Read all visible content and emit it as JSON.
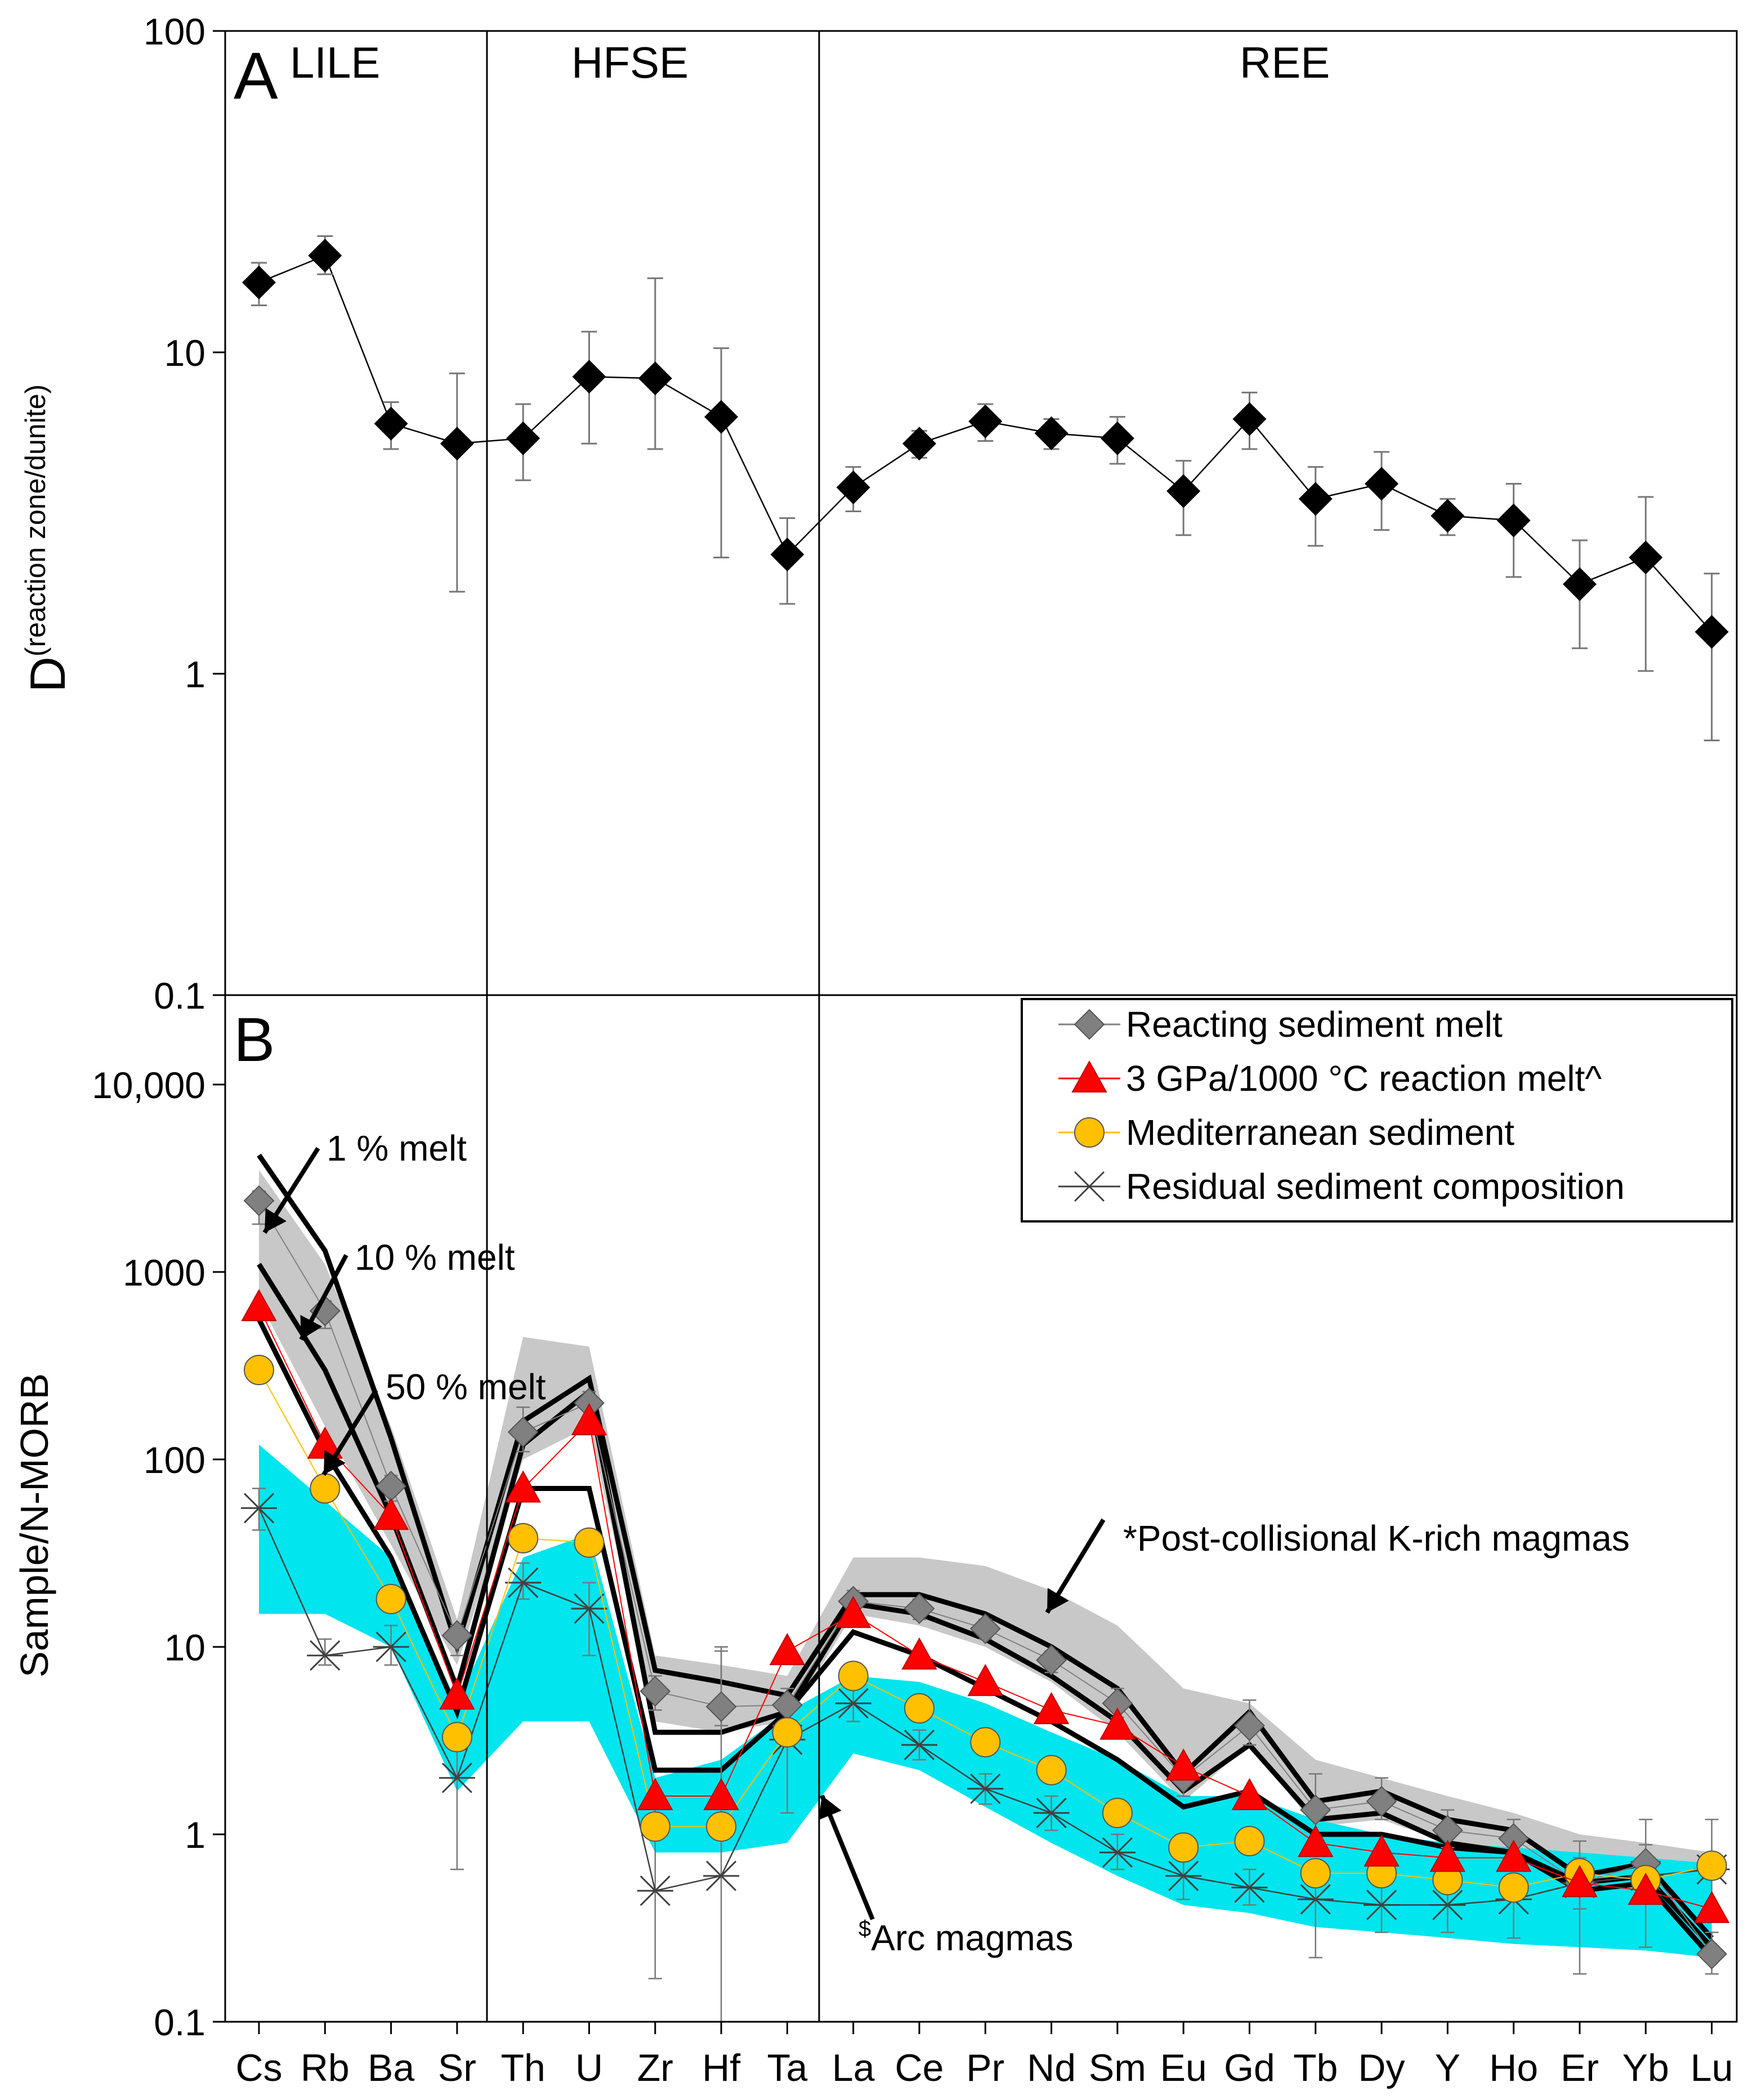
{
  "chart_data": [
    {
      "panel": "A",
      "type": "line",
      "scale": "log",
      "ylim": [
        0.1,
        100
      ],
      "ylabel": "D",
      "ylabel_subscript": "(reaction zone/dunite)",
      "yticks": [
        "100",
        "10",
        "1",
        "0.1"
      ],
      "groups": [
        "LILE",
        "HFSE",
        "REE"
      ],
      "categories": [
        "Cs",
        "Rb",
        "Ba",
        "Sr",
        "Th",
        "U",
        "Zr",
        "Hf",
        "Ta",
        "La",
        "Ce",
        "Pr",
        "Nd",
        "Sm",
        "Eu",
        "Gd",
        "Tb",
        "Dy",
        "Y",
        "Ho",
        "Er",
        "Yb",
        "Lu"
      ],
      "series": [
        {
          "name": "D(reaction zone/dunite)",
          "values": [
            16.5,
            20,
            6,
            5.2,
            5.4,
            8.4,
            8.3,
            6.3,
            2.35,
            3.8,
            5.2,
            6.1,
            5.6,
            5.4,
            3.7,
            6.2,
            3.5,
            3.9,
            3.1,
            3.0,
            1.9,
            2.3,
            1.35
          ],
          "err_low": [
            14,
            17.5,
            5,
            1.8,
            4,
            5.2,
            5,
            2.3,
            1.65,
            3.2,
            4.7,
            5.3,
            5,
            4.5,
            2.7,
            5,
            2.5,
            2.8,
            2.7,
            2,
            1.2,
            1.02,
            0.62
          ],
          "err_high": [
            19,
            23,
            7,
            8.6,
            6.9,
            11.6,
            17,
            10.3,
            3.05,
            4.4,
            5.7,
            6.9,
            6.2,
            6.3,
            4.6,
            7.5,
            4.4,
            4.9,
            3.5,
            3.9,
            2.6,
            3.55,
            2.05
          ]
        }
      ]
    },
    {
      "panel": "B",
      "type": "line",
      "scale": "log",
      "ylim": [
        0.1,
        30000
      ],
      "ylabel": "Sample/N-MORB",
      "yticks": [
        "10,000",
        "1000",
        "100",
        "10",
        "1",
        "0.1"
      ],
      "categories": [
        "Cs",
        "Rb",
        "Ba",
        "Sr",
        "Th",
        "U",
        "Zr",
        "Hf",
        "Ta",
        "La",
        "Ce",
        "Pr",
        "Nd",
        "Sm",
        "Eu",
        "Gd",
        "Tb",
        "Dy",
        "Y",
        "Ho",
        "Er",
        "Yb",
        "Lu"
      ],
      "series": [
        {
          "name": "Reacting sediment melt",
          "color": "#808080",
          "marker": "diamond",
          "values": [
            2400,
            620,
            72,
            11.5,
            140,
            200,
            5.8,
            4.8,
            4.9,
            17.5,
            16,
            12.5,
            8.5,
            5,
            2,
            3.8,
            1.35,
            1.5,
            1.05,
            0.95,
            0.55,
            0.7,
            0.23
          ],
          "err_low": [
            1800,
            500,
            60,
            9,
            110,
            160,
            4.6,
            3.8,
            3.9,
            15,
            14,
            11,
            7.3,
            4.2,
            1.6,
            3,
            0.9,
            1.2,
            0.85,
            0.75,
            0.4,
            0.5,
            0.18
          ],
          "err_high": [
            2700,
            700,
            82,
            13,
            190,
            230,
            7,
            9.5,
            6,
            20,
            18,
            14,
            9.5,
            6,
            2.5,
            5.2,
            2.1,
            2,
            1.35,
            1.2,
            0.75,
            1.2,
            0.3
          ]
        },
        {
          "name": "3 GPa/1000 °C reaction melt^",
          "color": "#ff0000",
          "marker": "triangle",
          "values": [
            650,
            120,
            50,
            5.5,
            70,
            160,
            1.6,
            1.6,
            9.5,
            15,
            9,
            6.5,
            4.6,
            3.8,
            2.3,
            1.6,
            0.9,
            0.8,
            0.75,
            0.75,
            0.55,
            0.5,
            0.4
          ]
        },
        {
          "name": "Mediterranean sediment",
          "color": "#ffc000",
          "marker": "circle",
          "values": [
            300,
            70,
            18,
            3.3,
            38,
            36,
            1.1,
            1.1,
            3.5,
            7,
            4.7,
            3.1,
            2.2,
            1.3,
            0.85,
            0.92,
            0.62,
            0.62,
            0.57,
            0.52,
            0.62,
            0.57,
            0.68
          ]
        },
        {
          "name": "Residual sediment composition",
          "color": "#404040",
          "marker": "x",
          "values": [
            55,
            9,
            10,
            2,
            22,
            16,
            0.5,
            0.6,
            3.2,
            5,
            3,
            1.75,
            1.3,
            0.8,
            0.6,
            0.52,
            0.45,
            0.42,
            0.42,
            0.45,
            0.55,
            0.6,
            0.65
          ],
          "err_low": [
            42,
            8,
            8,
            0.65,
            18,
            9,
            0.17,
            0.1,
            1.3,
            4,
            2.5,
            1.45,
            1.05,
            0.65,
            0.45,
            0.42,
            0.22,
            0.3,
            0.3,
            0.28,
            0.18,
            0.25,
            0.38
          ],
          "err_high": [
            70,
            11,
            13,
            3.5,
            28,
            22,
            1.6,
            10,
            5.2,
            6.5,
            3.6,
            2.1,
            1.6,
            1,
            0.75,
            0.65,
            0.7,
            0.55,
            0.6,
            0.6,
            0.92,
            0.88,
            1.2
          ]
        }
      ],
      "melt_curves": [
        {
          "name": "1 % melt",
          "values": [
            4200,
            1300,
            130,
            10,
            160,
            270,
            7.5,
            6.5,
            5.5,
            19,
            19,
            15,
            10,
            6,
            2.1,
            4.5,
            1.5,
            1.7,
            1.2,
            1.05,
            0.6,
            0.7,
            0.28
          ]
        },
        {
          "name": "10 % melt",
          "values": [
            1100,
            300,
            50,
            6,
            120,
            230,
            3.5,
            3.5,
            4.5,
            17,
            15,
            11,
            7,
            4,
            1.7,
            3,
            1.2,
            1.3,
            0.9,
            0.8,
            0.55,
            0.6,
            0.25
          ]
        },
        {
          "name": "50 % melt",
          "values": [
            560,
            110,
            30,
            4.5,
            70,
            70,
            2.2,
            2.2,
            4.5,
            12,
            9,
            6,
            4,
            2.5,
            1.4,
            1.7,
            1,
            1,
            0.85,
            0.8,
            0.5,
            0.55,
            0.22
          ]
        }
      ],
      "bands": [
        {
          "name": "*Post-collisional K-rich magmas",
          "color": "#c8c8c8",
          "lower": [
            700,
            150,
            35,
            8,
            100,
            150,
            4,
            3.5,
            4,
            15,
            13,
            10,
            6.5,
            3.5,
            1.5,
            3,
            1.1,
            1.2,
            0.9,
            0.8,
            0.5,
            0.5,
            0.3
          ],
          "upper": [
            3500,
            1100,
            150,
            14,
            450,
            400,
            9,
            8,
            7,
            30,
            30,
            27,
            20,
            13,
            6,
            5,
            2.5,
            2,
            1.6,
            1.3,
            1,
            0.9,
            0.8
          ]
        },
        {
          "name": "$Arc magmas",
          "color": "#00e5ee",
          "lower": [
            15,
            15,
            10,
            1.7,
            4,
            4,
            0.8,
            0.8,
            0.9,
            2.7,
            2.2,
            1.4,
            0.9,
            0.6,
            0.42,
            0.38,
            0.32,
            0.3,
            0.28,
            0.26,
            0.25,
            0.24,
            0.22
          ],
          "upper": [
            120,
            60,
            30,
            5,
            30,
            40,
            2,
            2.5,
            4.5,
            7,
            6.5,
            5,
            3.5,
            2.5,
            1.6,
            1.6,
            1.2,
            1,
            0.9,
            0.85,
            0.8,
            0.75,
            0.7
          ]
        }
      ],
      "annotations": [
        "1 % melt",
        "10 % melt",
        "50 % melt",
        "*Post-collisional K-rich magmas",
        "$Arc magmas"
      ],
      "legend_position": "top-right"
    }
  ],
  "labels": {
    "panel_a": "A",
    "panel_b": "B",
    "group_lile": "LILE",
    "group_hfse": "HFSE",
    "group_ree": "REE",
    "ylabel_a_main": "D",
    "ylabel_a_sub": "(reaction zone/dunite)",
    "ylabel_b": "Sample/N-MORB",
    "arc_prefix": "$",
    "arc_text": "Arc magmas"
  }
}
